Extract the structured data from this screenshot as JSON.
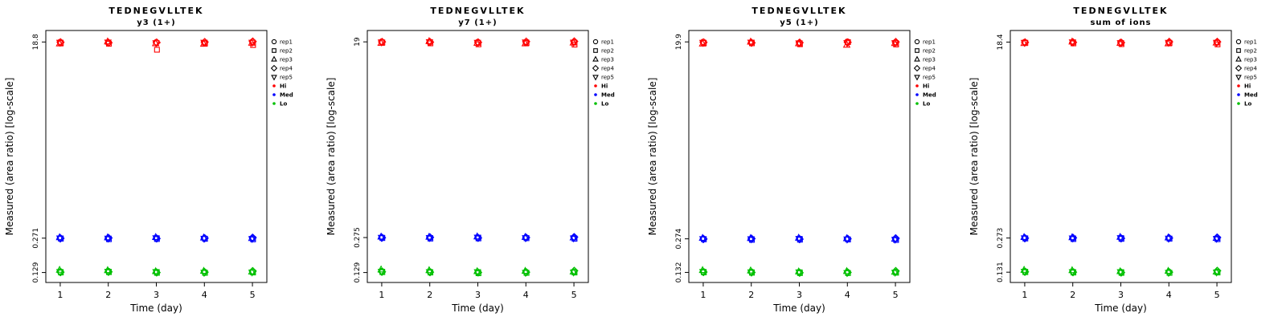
{
  "figure": {
    "background": "#ffffff",
    "axis_color": "#000000"
  },
  "legend": {
    "rep_items": [
      {
        "label": "rep1",
        "symbol": "circle"
      },
      {
        "label": "rep2",
        "symbol": "square"
      },
      {
        "label": "rep3",
        "symbol": "triangle-up"
      },
      {
        "label": "rep4",
        "symbol": "diamond"
      },
      {
        "label": "rep5",
        "symbol": "triangle-down"
      }
    ],
    "level_items": [
      {
        "label": "Hi",
        "color": "#FF0000"
      },
      {
        "label": "Med",
        "color": "#0000FF"
      },
      {
        "label": "Lo",
        "color": "#00C000"
      }
    ]
  },
  "chart_data": [
    {
      "type": "scatter",
      "title": "TEDNEGVLLTEK",
      "subtitle": "y3 (1+)",
      "xlabel": "Time (day)",
      "ylabel": "Measured (area ratio) [log-scale]",
      "x_ticks": [
        1,
        2,
        3,
        4,
        5
      ],
      "y_scale": "log",
      "ylim": [
        0.104,
        24.1
      ],
      "y_ticks": [
        {
          "value": 18.8,
          "label": "18.8"
        },
        {
          "value": 0.271,
          "label": "0.271"
        },
        {
          "value": 0.129,
          "label": "0.129"
        }
      ],
      "reps": [
        "rep1",
        "rep2",
        "rep3",
        "rep4",
        "rep5"
      ],
      "levels": [
        {
          "name": "Hi",
          "color": "#FF0000",
          "values_by_day": [
            [
              18.8,
              18.3,
              18.1,
              18.7,
              18.6
            ],
            [
              18.4,
              18.1,
              18.9,
              18.5,
              18.7
            ],
            [
              18.7,
              15.9,
              18.2,
              18.6,
              18.4
            ],
            [
              18.5,
              18.2,
              18.0,
              18.8,
              18.6
            ],
            [
              18.9,
              17.6,
              18.4,
              19.0,
              18.6
            ]
          ]
        },
        {
          "name": "Med",
          "color": "#0000FF",
          "values_by_day": [
            [
              0.272,
              0.268,
              0.275,
              0.27,
              0.271
            ],
            [
              0.269,
              0.265,
              0.274,
              0.272,
              0.27
            ],
            [
              0.271,
              0.266,
              0.276,
              0.269,
              0.272
            ],
            [
              0.27,
              0.267,
              0.273,
              0.271,
              0.269
            ],
            [
              0.272,
              0.264,
              0.27,
              0.274,
              0.268
            ]
          ]
        },
        {
          "name": "Lo",
          "color": "#00C000",
          "values_by_day": [
            [
              0.132,
              0.129,
              0.136,
              0.13,
              0.131
            ],
            [
              0.133,
              0.13,
              0.135,
              0.131,
              0.132
            ],
            [
              0.13,
              0.128,
              0.132,
              0.129,
              0.131
            ],
            [
              0.131,
              0.128,
              0.133,
              0.13,
              0.129
            ],
            [
              0.132,
              0.129,
              0.131,
              0.133,
              0.13
            ]
          ]
        }
      ]
    },
    {
      "type": "scatter",
      "title": "TEDNEGVLLTEK",
      "subtitle": "y7 (1+)",
      "xlabel": "Time (day)",
      "ylabel": "Measured (area ratio) [log-scale]",
      "x_ticks": [
        1,
        2,
        3,
        4,
        5
      ],
      "y_scale": "log",
      "ylim": [
        0.104,
        24.3
      ],
      "y_ticks": [
        {
          "value": 19.0,
          "label": "19"
        },
        {
          "value": 0.275,
          "label": "0.275"
        },
        {
          "value": 0.129,
          "label": "0.129"
        }
      ],
      "reps": [
        "rep1",
        "rep2",
        "rep3",
        "rep4",
        "rep5"
      ],
      "levels": [
        {
          "name": "Hi",
          "color": "#FF0000",
          "values_by_day": [
            [
              19.1,
              18.7,
              18.5,
              19.0,
              18.9
            ],
            [
              18.8,
              18.4,
              19.2,
              18.9,
              19.0
            ],
            [
              18.9,
              18.0,
              18.5,
              18.8,
              18.7
            ],
            [
              18.8,
              18.5,
              18.3,
              19.1,
              18.9
            ],
            [
              19.0,
              17.9,
              18.6,
              19.2,
              18.8
            ]
          ]
        },
        {
          "name": "Med",
          "color": "#0000FF",
          "values_by_day": [
            [
              0.276,
              0.272,
              0.279,
              0.274,
              0.275
            ],
            [
              0.273,
              0.269,
              0.278,
              0.276,
              0.274
            ],
            [
              0.275,
              0.27,
              0.28,
              0.273,
              0.276
            ],
            [
              0.274,
              0.271,
              0.277,
              0.275,
              0.273
            ],
            [
              0.276,
              0.268,
              0.274,
              0.278,
              0.272
            ]
          ]
        },
        {
          "name": "Lo",
          "color": "#00C000",
          "values_by_day": [
            [
              0.133,
              0.13,
              0.137,
              0.131,
              0.132
            ],
            [
              0.132,
              0.129,
              0.135,
              0.13,
              0.131
            ],
            [
              0.13,
              0.127,
              0.132,
              0.129,
              0.131
            ],
            [
              0.131,
              0.128,
              0.133,
              0.13,
              0.129
            ],
            [
              0.132,
              0.129,
              0.131,
              0.134,
              0.13
            ]
          ]
        }
      ]
    },
    {
      "type": "scatter",
      "title": "TEDNEGVLLTEK",
      "subtitle": "y5 (1+)",
      "xlabel": "Time (day)",
      "ylabel": "Measured (area ratio) [log-scale]",
      "x_ticks": [
        1,
        2,
        3,
        4,
        5
      ],
      "y_scale": "log",
      "ylim": [
        0.106,
        25.5
      ],
      "y_ticks": [
        {
          "value": 19.9,
          "label": "19.9"
        },
        {
          "value": 0.274,
          "label": "0.274"
        },
        {
          "value": 0.132,
          "label": "0.132"
        }
      ],
      "reps": [
        "rep1",
        "rep2",
        "rep3",
        "rep4",
        "rep5"
      ],
      "levels": [
        {
          "name": "Hi",
          "color": "#FF0000",
          "values_by_day": [
            [
              19.9,
              19.4,
              19.1,
              19.7,
              19.6
            ],
            [
              19.6,
              19.3,
              19.9,
              19.5,
              19.7
            ],
            [
              19.5,
              18.9,
              19.2,
              19.6,
              19.4
            ],
            [
              20.0,
              19.8,
              18.6,
              19.7,
              19.5
            ],
            [
              19.7,
              18.8,
              19.3,
              19.9,
              19.5
            ]
          ]
        },
        {
          "name": "Med",
          "color": "#0000FF",
          "values_by_day": [
            [
              0.275,
              0.271,
              0.278,
              0.273,
              0.274
            ],
            [
              0.272,
              0.268,
              0.277,
              0.275,
              0.273
            ],
            [
              0.274,
              0.269,
              0.279,
              0.272,
              0.275
            ],
            [
              0.273,
              0.27,
              0.276,
              0.274,
              0.272
            ],
            [
              0.275,
              0.267,
              0.273,
              0.277,
              0.271
            ]
          ]
        },
        {
          "name": "Lo",
          "color": "#00C000",
          "values_by_day": [
            [
              0.135,
              0.132,
              0.138,
              0.133,
              0.134
            ],
            [
              0.134,
              0.131,
              0.137,
              0.132,
              0.133
            ],
            [
              0.132,
              0.13,
              0.134,
              0.131,
              0.133
            ],
            [
              0.133,
              0.13,
              0.135,
              0.132,
              0.131
            ],
            [
              0.134,
              0.131,
              0.133,
              0.136,
              0.132
            ]
          ]
        }
      ]
    },
    {
      "type": "scatter",
      "title": "TEDNEGVLLTEK",
      "subtitle": "sum of ions",
      "xlabel": "Time (day)",
      "ylabel": "Measured (area ratio) [log-scale]",
      "x_ticks": [
        1,
        2,
        3,
        4,
        5
      ],
      "y_scale": "log",
      "ylim": [
        0.105,
        23.6
      ],
      "y_ticks": [
        {
          "value": 18.4,
          "label": "18.4"
        },
        {
          "value": 0.273,
          "label": "0.273"
        },
        {
          "value": 0.131,
          "label": "0.131"
        }
      ],
      "reps": [
        "rep1",
        "rep2",
        "rep3",
        "rep4",
        "rep5"
      ],
      "levels": [
        {
          "name": "Hi",
          "color": "#FF0000",
          "values_by_day": [
            [
              18.4,
              18.1,
              17.9,
              18.3,
              18.2
            ],
            [
              18.2,
              17.9,
              18.5,
              18.3,
              18.4
            ],
            [
              18.3,
              17.6,
              18.0,
              18.2,
              18.1
            ],
            [
              18.3,
              18.0,
              17.8,
              18.5,
              18.2
            ],
            [
              18.4,
              17.5,
              18.1,
              18.5,
              18.2
            ]
          ]
        },
        {
          "name": "Med",
          "color": "#0000FF",
          "values_by_day": [
            [
              0.274,
              0.27,
              0.277,
              0.272,
              0.273
            ],
            [
              0.271,
              0.267,
              0.276,
              0.274,
              0.272
            ],
            [
              0.273,
              0.268,
              0.278,
              0.271,
              0.274
            ],
            [
              0.272,
              0.269,
              0.275,
              0.273,
              0.271
            ],
            [
              0.274,
              0.266,
              0.272,
              0.276,
              0.27
            ]
          ]
        },
        {
          "name": "Lo",
          "color": "#00C000",
          "values_by_day": [
            [
              0.134,
              0.131,
              0.137,
              0.132,
              0.133
            ],
            [
              0.133,
              0.13,
              0.136,
              0.131,
              0.132
            ],
            [
              0.131,
              0.129,
              0.133,
              0.13,
              0.132
            ],
            [
              0.132,
              0.129,
              0.134,
              0.131,
              0.13
            ],
            [
              0.133,
              0.13,
              0.132,
              0.135,
              0.131
            ]
          ]
        }
      ]
    }
  ]
}
